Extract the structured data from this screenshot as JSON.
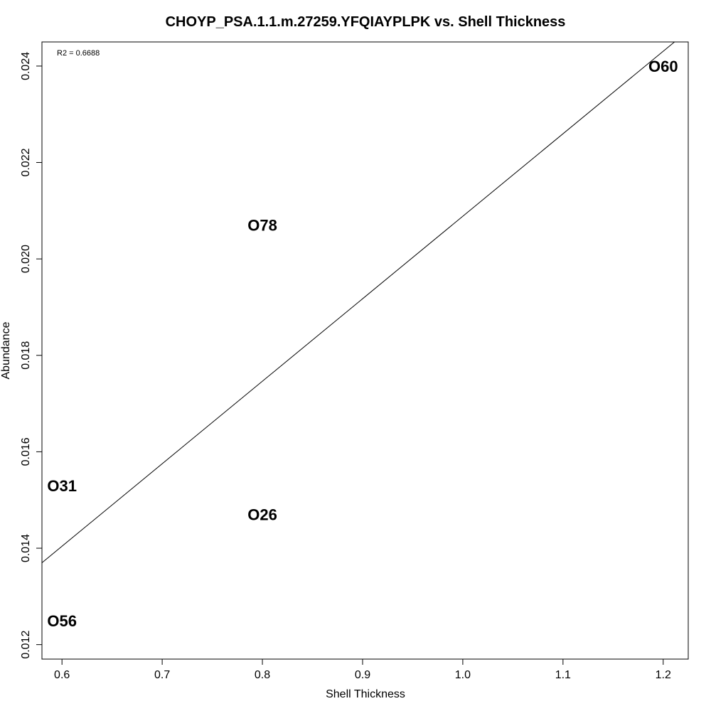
{
  "chart_data": {
    "type": "scatter",
    "title": "CHOYP_PSA.1.1.m.27259.YFQIAYPLPK vs. Shell Thickness",
    "xlabel": "Shell Thickness",
    "ylabel": "Abundance",
    "xlim": [
      0.58,
      1.225
    ],
    "ylim": [
      0.0117,
      0.0245
    ],
    "x_ticks": [
      0.6,
      0.7,
      0.8,
      0.9,
      1.0,
      1.1,
      1.2
    ],
    "x_tick_labels": [
      "0.6",
      "0.7",
      "0.8",
      "0.9",
      "1.0",
      "1.1",
      "1.2"
    ],
    "y_ticks": [
      0.012,
      0.014,
      0.016,
      0.018,
      0.02,
      0.022,
      0.024
    ],
    "y_tick_labels": [
      "0.012",
      "0.014",
      "0.016",
      "0.018",
      "0.020",
      "0.022",
      "0.024"
    ],
    "points": [
      {
        "label": "O60",
        "x": 1.2,
        "y": 0.024
      },
      {
        "label": "O78",
        "x": 0.8,
        "y": 0.0207
      },
      {
        "label": "O31",
        "x": 0.6,
        "y": 0.0153
      },
      {
        "label": "O26",
        "x": 0.8,
        "y": 0.0147
      },
      {
        "label": "O56",
        "x": 0.6,
        "y": 0.0125
      }
    ],
    "fit_line": {
      "slope": 0.01711,
      "intercept": 0.003775
    },
    "annotation": "R2 = 0.6688",
    "grid": false,
    "legend": "none"
  }
}
